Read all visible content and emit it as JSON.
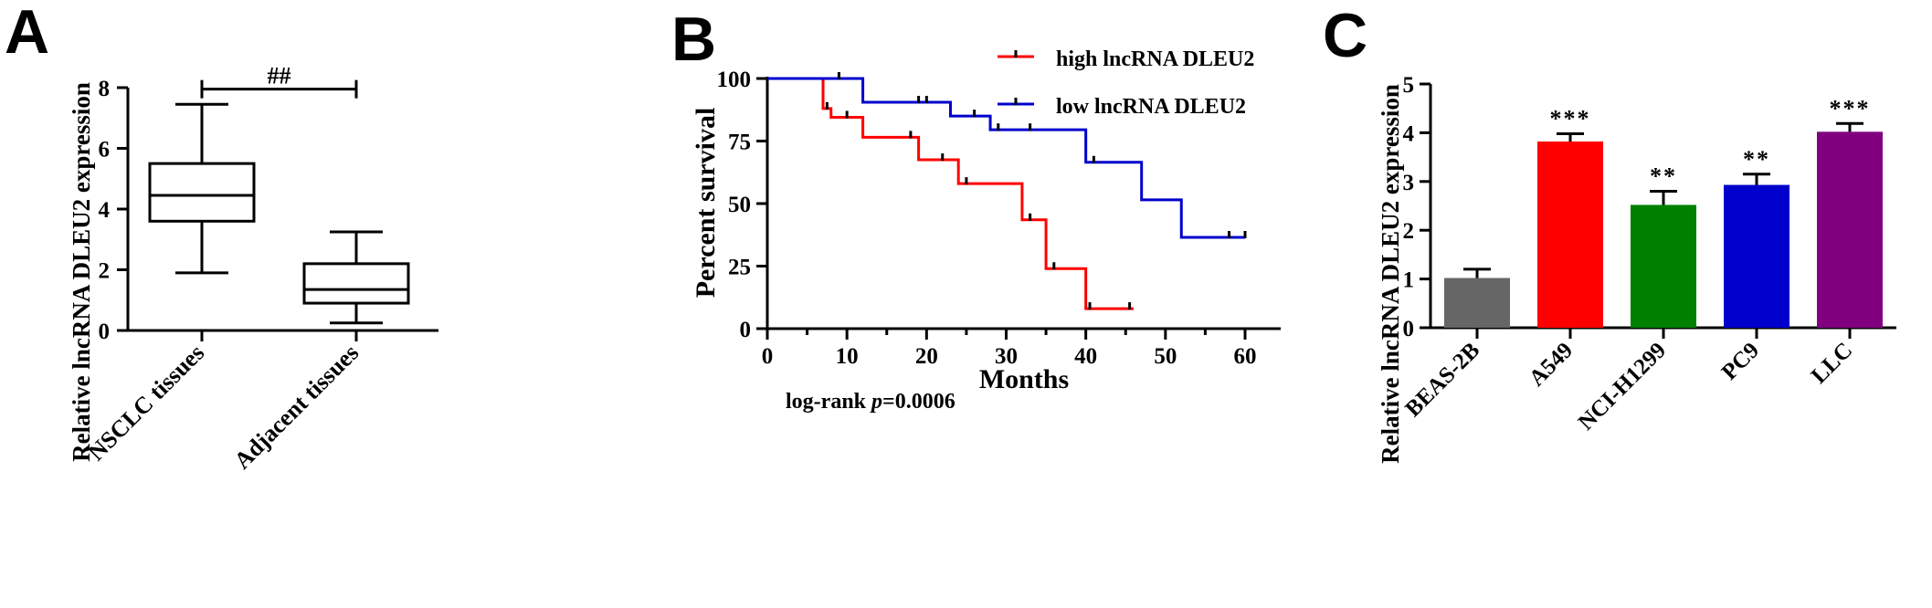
{
  "panel_labels": [
    "A",
    "B",
    "C"
  ],
  "chart_data": [
    {
      "type": "box",
      "panel": "A",
      "ylabel": "Relative  lncRNA DLEU2 expression",
      "ylim": [
        0,
        8
      ],
      "yticks": [
        0,
        2,
        4,
        6,
        8
      ],
      "categories": [
        "NSCLC tissues",
        "Adjacent tissues"
      ],
      "boxes": [
        {
          "min": 1.9,
          "q1": 3.6,
          "median": 4.45,
          "q3": 5.5,
          "max": 7.45
        },
        {
          "min": 0.25,
          "q1": 0.9,
          "median": 1.35,
          "q3": 2.2,
          "max": 3.25
        }
      ],
      "significance": {
        "label": "##",
        "between": [
          0,
          1
        ],
        "y": 7.95
      }
    },
    {
      "type": "line",
      "subtype": "kaplan-meier",
      "panel": "B",
      "xlabel": "Months",
      "ylabel": "Percent survival",
      "xlim": [
        0,
        60
      ],
      "ylim": [
        0,
        100
      ],
      "xticks": [
        0,
        10,
        20,
        30,
        40,
        50,
        60
      ],
      "yticks": [
        0,
        25,
        50,
        75,
        100
      ],
      "annotation": {
        "prefix": "log-rank ",
        "italic": "p",
        "suffix": "=0.0006"
      },
      "legend_position": "top-right",
      "series": [
        {
          "name": "high lncRNA DLEU2",
          "color": "#ff0000",
          "steps": [
            [
              0,
              100
            ],
            [
              7,
              88
            ],
            [
              8,
              84.5
            ],
            [
              12,
              76.5
            ],
            [
              19,
              67.5
            ],
            [
              24,
              58
            ],
            [
              32,
              43.5
            ],
            [
              35,
              24
            ],
            [
              40,
              8
            ],
            [
              46,
              8
            ]
          ],
          "censored": [
            [
              7.5,
              88
            ],
            [
              10,
              84.5
            ],
            [
              18,
              76.5
            ],
            [
              22,
              67.5
            ],
            [
              25,
              58
            ],
            [
              33,
              43.5
            ],
            [
              36,
              24
            ],
            [
              40.5,
              8
            ],
            [
              45.5,
              8
            ]
          ]
        },
        {
          "name": "low  lncRNA DLEU2",
          "color": "#0000cc",
          "steps": [
            [
              0,
              100
            ],
            [
              12,
              90.5
            ],
            [
              23,
              85
            ],
            [
              28,
              79.5
            ],
            [
              40,
              66.5
            ],
            [
              47,
              51.5
            ],
            [
              52,
              36.5
            ],
            [
              60,
              36.5
            ]
          ],
          "censored": [
            [
              9,
              100
            ],
            [
              19,
              90.5
            ],
            [
              20,
              90.5
            ],
            [
              26,
              85
            ],
            [
              29,
              79.5
            ],
            [
              33,
              79.5
            ],
            [
              41,
              66.5
            ],
            [
              58,
              36.5
            ],
            [
              60,
              36.5
            ]
          ]
        }
      ]
    },
    {
      "type": "bar",
      "panel": "C",
      "ylabel": "Relative lncRNA DLEU2 expression",
      "ylim": [
        0,
        5
      ],
      "yticks": [
        0,
        1,
        2,
        3,
        4,
        5
      ],
      "categories": [
        "BEAS-2B",
        "A549",
        "NCI-H1299",
        "PC9",
        "LLC"
      ],
      "values": [
        1.02,
        3.82,
        2.52,
        2.93,
        4.02
      ],
      "errors": [
        0.18,
        0.16,
        0.28,
        0.22,
        0.17
      ],
      "colors": [
        "#666666",
        "#ff0000",
        "#008000",
        "#0000cc",
        "#800080"
      ],
      "annotations": [
        "",
        "***",
        "**",
        "**",
        "***"
      ]
    }
  ]
}
